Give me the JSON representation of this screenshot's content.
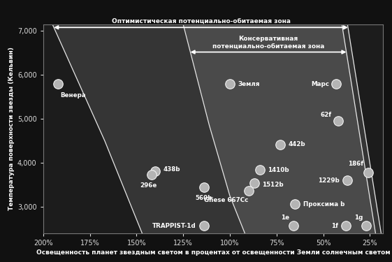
{
  "chart_data": {
    "type": "scatter",
    "x_label": "Освещенность планет звездным светом в процентах от освещенности Земли солнечным светом",
    "y_label": "Температура поверхности звезды (Кельвин)",
    "xlim": [
      200,
      18
    ],
    "ylim": [
      2400,
      7150
    ],
    "xticks": [
      {
        "value": 200,
        "label": "200%"
      },
      {
        "value": 175,
        "label": "175%"
      },
      {
        "value": 150,
        "label": "150%"
      },
      {
        "value": 125,
        "label": "125%"
      },
      {
        "value": 100,
        "label": "100%"
      },
      {
        "value": 75,
        "label": "75%"
      },
      {
        "value": 50,
        "label": "50%"
      },
      {
        "value": 25,
        "label": "25%"
      }
    ],
    "yticks": [
      {
        "value": 3000,
        "label": "3,000"
      },
      {
        "value": 4000,
        "label": "4,000"
      },
      {
        "value": 5000,
        "label": "5,000"
      },
      {
        "value": 6000,
        "label": "6,000"
      },
      {
        "value": 7000,
        "label": "7,000"
      }
    ],
    "grid": false,
    "color": "#b4b4b4",
    "marker": "o",
    "points": {
      "labels": [
        "Венера",
        "Земля",
        "Марс",
        "62f",
        "442b",
        "1410b",
        "1512b",
        "Gliese 667Cc",
        "438b",
        "296e",
        "560b",
        "TRAPPIST-1d",
        "Проксима b",
        "1e",
        "1f",
        "1g",
        "1229b",
        "186f"
      ],
      "x": [
        192,
        100,
        43,
        42,
        73,
        84,
        87,
        90,
        140,
        142,
        114,
        114,
        65,
        66,
        38,
        27,
        37,
        26
      ],
      "y": [
        5790,
        5790,
        5790,
        4960,
        4420,
        3840,
        3540,
        3370,
        3810,
        3730,
        3450,
        2570,
        3060,
        2570,
        2570,
        2570,
        3600,
        3780
      ]
    },
    "zones": [
      {
        "name": "Оптимистическая потенциально-обитаемая зона",
        "color": "#4a4a4a",
        "arrow_y": 7080,
        "inner": {
          "x": [
            195,
            167,
            147
          ],
          "y": [
            7150,
            4500,
            2400
          ]
        },
        "outer": {
          "x": [
            37,
            19
          ],
          "y": [
            7150,
            2400
          ]
        }
      },
      {
        "name": "Консервативная\nпотенциально-обитаемая зона",
        "color": "#5c5c5c",
        "arrow_y": 6520,
        "inner": {
          "x": [
            125,
            111,
            100,
            92
          ],
          "y": [
            7150,
            4850,
            3250,
            2400
          ]
        },
        "outer": {
          "x": [
            40,
            22
          ],
          "y": [
            7150,
            2400
          ]
        }
      }
    ]
  }
}
